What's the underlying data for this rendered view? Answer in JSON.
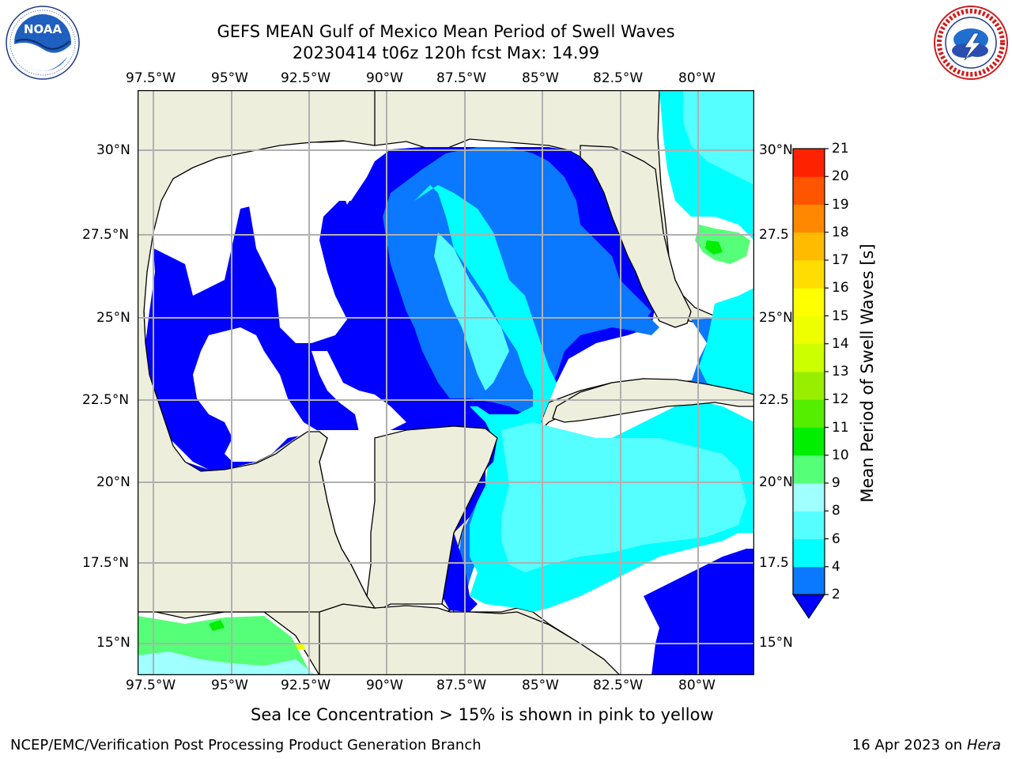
{
  "title": {
    "line1": "GEFS MEAN Gulf of Mexico Mean Period of Swell Waves",
    "line2": "20230414 t06z 120h fcst   Max: 14.99"
  },
  "logos": {
    "noaa": {
      "text": "NOAA",
      "ring_text": "NATIONAL OCEANIC AND ATMOSPHERIC ADMINISTRATION · U.S. DEPARTMENT OF COMMERCE",
      "icon": "noaa-logo"
    },
    "nws": {
      "ring_text": "NATIONAL WEATHER SERVICE",
      "icon": "nws-logo"
    }
  },
  "map": {
    "lon_labels": [
      "97.5°W",
      "95°W",
      "92.5°W",
      "90°W",
      "87.5°W",
      "85°W",
      "82.5°W",
      "80°W"
    ],
    "lat_labels_left": [
      "30°N",
      "27.5°N",
      "25°N",
      "22.5°N",
      "20°N",
      "17.5°N",
      "15°N"
    ],
    "lat_labels_right": [
      "30°N",
      "27.5",
      "25°N",
      "22.5",
      "20°N",
      "17.5",
      "15°N"
    ],
    "land_color": "#eeeedd",
    "grid_color": "#b0b0b0"
  },
  "colorbar": {
    "label": "Mean Period of Swell Waves [s]",
    "ticks": [
      "2",
      "4",
      "6",
      "8",
      "9",
      "10",
      "11",
      "12",
      "13",
      "14",
      "15",
      "16",
      "17",
      "18",
      "19",
      "20",
      "21"
    ],
    "colors": [
      "#0000ff",
      "#0a78ff",
      "#00ffff",
      "#55ffff",
      "#a0ffff",
      "#55ff77",
      "#00ee00",
      "#55ee00",
      "#99ee00",
      "#ccff00",
      "#eeff00",
      "#ffff00",
      "#ffdd00",
      "#ffbb00",
      "#ff8800",
      "#ff5500",
      "#ff2200",
      "#ff0000"
    ],
    "extend": "min"
  },
  "note": "Sea Ice Concentration > 15% is shown in pink to yellow",
  "footer": {
    "left": "NCEP/EMC/Verification Post Processing Product Generation Branch",
    "right_prefix": "16 Apr 2023 on ",
    "right_machine": "Hera"
  }
}
